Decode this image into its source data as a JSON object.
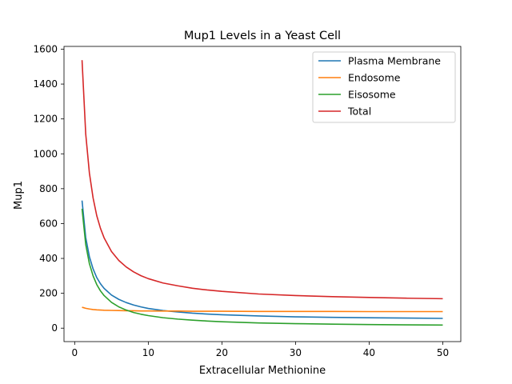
{
  "chart_data": {
    "type": "line",
    "title": "Mup1 Levels in a Yeast Cell",
    "xlabel": "Extracellular Methionine",
    "ylabel": "Mup1",
    "xlim": [
      -1.45,
      52.45
    ],
    "ylim": [
      -77,
      1616
    ],
    "xticks": [
      0,
      10,
      20,
      30,
      40,
      50
    ],
    "yticks": [
      0,
      200,
      400,
      600,
      800,
      1000,
      1200,
      1400,
      1600
    ],
    "grid": false,
    "legend_position": "top-right",
    "x": [
      1,
      1.5,
      2,
      2.5,
      3,
      3.5,
      4,
      5,
      6,
      7,
      8,
      9,
      10,
      12,
      14,
      16,
      18,
      20,
      25,
      30,
      35,
      40,
      45,
      50
    ],
    "series": [
      {
        "name": "Plasma Membrane",
        "color": "#1f77b4",
        "values": [
          732,
          520,
          410,
          340,
          290,
          255,
          228,
          190,
          165,
          147,
          133,
          122,
          113,
          101,
          93,
          86,
          81,
          77,
          70,
          65,
          62,
          60,
          58,
          56
        ]
      },
      {
        "name": "Endosome",
        "color": "#ff7f0e",
        "values": [
          120,
          114,
          110,
          107,
          105,
          104,
          103,
          102,
          101,
          100,
          100,
          99,
          99,
          98,
          98,
          97,
          97,
          97,
          96,
          96,
          96,
          95,
          95,
          95
        ]
      },
      {
        "name": "Eisosome",
        "color": "#2ca02c",
        "values": [
          685,
          480,
          370,
          300,
          250,
          214,
          187,
          148,
          122,
          104,
          90,
          80,
          72,
          60,
          52,
          46,
          41,
          37,
          30,
          26,
          23,
          21,
          19,
          18
        ]
      },
      {
        "name": "Total",
        "color": "#d62728",
        "values": [
          1537,
          1114,
          890,
          747,
          645,
          573,
          518,
          440,
          388,
          351,
          323,
          301,
          284,
          259,
          243,
          229,
          219,
          211,
          196,
          187,
          181,
          176,
          172,
          169
        ]
      }
    ]
  }
}
